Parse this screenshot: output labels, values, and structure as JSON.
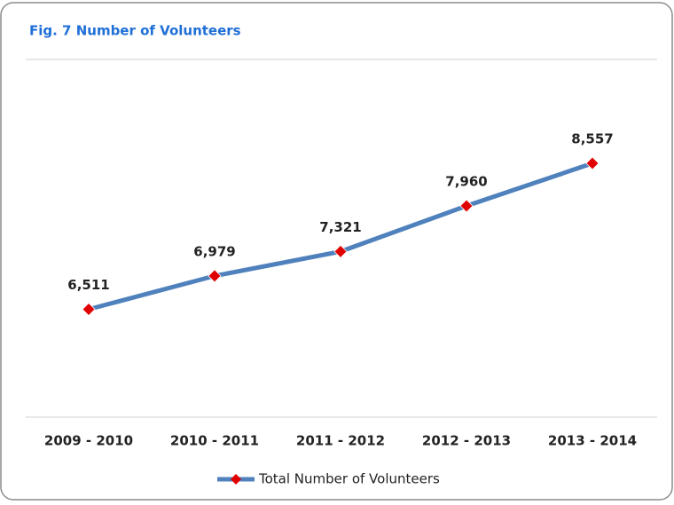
{
  "chart_data": {
    "type": "line",
    "title": "Fig. 7 Number of Volunteers",
    "categories": [
      "2009 - 2010",
      "2010 - 2011",
      "2011 - 2012",
      "2012 - 2013",
      "2013 - 2014"
    ],
    "series": [
      {
        "name": "Total Number of Volunteers",
        "color": "#4f81bd",
        "marker_color": "#e00000",
        "values": [
          6511,
          6979,
          7321,
          7960,
          8557
        ],
        "value_labels": [
          "6,511",
          "6,979",
          "7,321",
          "7,960",
          "8,557"
        ]
      }
    ],
    "ylim": [
      5000,
      10000
    ],
    "legend": "bottom"
  }
}
